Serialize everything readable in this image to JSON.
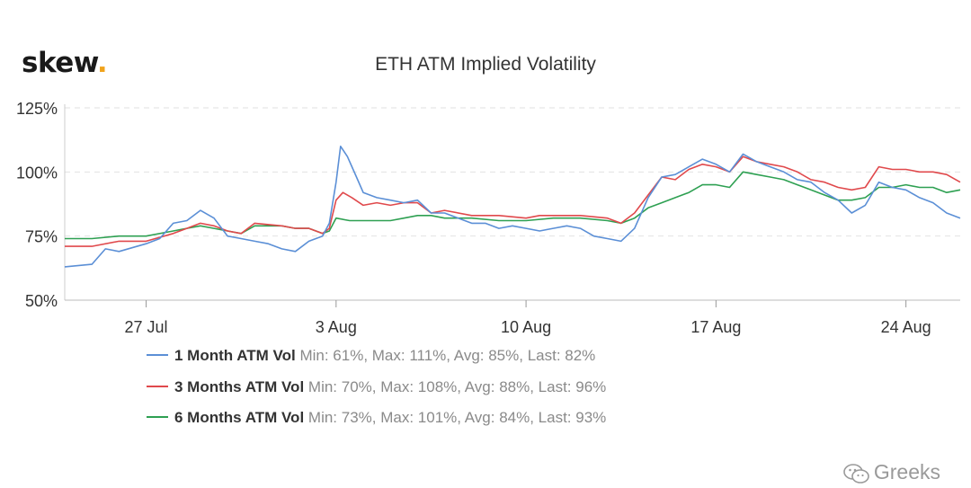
{
  "header": {
    "logo_text": "skew",
    "logo_dot": ".",
    "logo_dot_color": "#f0a31c"
  },
  "watermark": {
    "text": "Greeks",
    "icon": "wechat-icon"
  },
  "chart_data": {
    "type": "line",
    "title": "ETH ATM Implied Volatility",
    "xlabel": "",
    "ylabel": "",
    "x_axis": {
      "type": "date",
      "range": [
        "2020-07-24",
        "2020-08-26"
      ],
      "ticks": [
        {
          "date": "2020-07-27",
          "label": "27 Jul"
        },
        {
          "date": "2020-08-03",
          "label": "3 Aug"
        },
        {
          "date": "2020-08-10",
          "label": "10 Aug"
        },
        {
          "date": "2020-08-17",
          "label": "17 Aug"
        },
        {
          "date": "2020-08-24",
          "label": "24 Aug"
        }
      ]
    },
    "y_axis": {
      "range": [
        50,
        125
      ],
      "ticks": [
        {
          "value": 50,
          "label": "50%"
        },
        {
          "value": 75,
          "label": "75%"
        },
        {
          "value": 100,
          "label": "100%"
        },
        {
          "value": 125,
          "label": "125%"
        }
      ],
      "gridlines": true
    },
    "legend_position": "bottom",
    "series": [
      {
        "name": "1 Month ATM Vol",
        "stats": "Min: 61%, Max: 111%, Avg: 85%, Last: 82%",
        "color": "#5b8fd6",
        "points": [
          [
            "2020-07-24",
            63
          ],
          [
            "2020-07-25",
            64
          ],
          [
            "2020-07-25T12:00",
            70
          ],
          [
            "2020-07-26",
            69
          ],
          [
            "2020-07-27",
            72
          ],
          [
            "2020-07-27T12:00",
            74
          ],
          [
            "2020-07-28",
            80
          ],
          [
            "2020-07-28T12:00",
            81
          ],
          [
            "2020-07-29",
            85
          ],
          [
            "2020-07-29T12:00",
            82
          ],
          [
            "2020-07-30",
            75
          ],
          [
            "2020-07-30T12:00",
            74
          ],
          [
            "2020-07-31",
            73
          ],
          [
            "2020-07-31T12:00",
            72
          ],
          [
            "2020-08-01",
            70
          ],
          [
            "2020-08-01T12:00",
            69
          ],
          [
            "2020-08-02",
            73
          ],
          [
            "2020-08-02T12:00",
            75
          ],
          [
            "2020-08-02T18:00",
            80
          ],
          [
            "2020-08-03",
            96
          ],
          [
            "2020-08-03T04:00",
            110
          ],
          [
            "2020-08-03T10:00",
            106
          ],
          [
            "2020-08-03T18:00",
            98
          ],
          [
            "2020-08-04",
            92
          ],
          [
            "2020-08-04T12:00",
            90
          ],
          [
            "2020-08-05",
            89
          ],
          [
            "2020-08-05T12:00",
            88
          ],
          [
            "2020-08-06",
            89
          ],
          [
            "2020-08-06T12:00",
            84
          ],
          [
            "2020-08-07",
            84
          ],
          [
            "2020-08-07T12:00",
            82
          ],
          [
            "2020-08-08",
            80
          ],
          [
            "2020-08-08T12:00",
            80
          ],
          [
            "2020-08-09",
            78
          ],
          [
            "2020-08-09T12:00",
            79
          ],
          [
            "2020-08-10",
            78
          ],
          [
            "2020-08-10T12:00",
            77
          ],
          [
            "2020-08-11",
            78
          ],
          [
            "2020-08-11T12:00",
            79
          ],
          [
            "2020-08-12",
            78
          ],
          [
            "2020-08-12T12:00",
            75
          ],
          [
            "2020-08-13",
            74
          ],
          [
            "2020-08-13T12:00",
            73
          ],
          [
            "2020-08-14",
            78
          ],
          [
            "2020-08-14T12:00",
            90
          ],
          [
            "2020-08-15",
            98
          ],
          [
            "2020-08-15T12:00",
            99
          ],
          [
            "2020-08-16",
            102
          ],
          [
            "2020-08-16T12:00",
            105
          ],
          [
            "2020-08-17",
            103
          ],
          [
            "2020-08-17T12:00",
            100
          ],
          [
            "2020-08-18",
            107
          ],
          [
            "2020-08-18T12:00",
            104
          ],
          [
            "2020-08-19",
            102
          ],
          [
            "2020-08-19T12:00",
            100
          ],
          [
            "2020-08-20",
            97
          ],
          [
            "2020-08-20T12:00",
            96
          ],
          [
            "2020-08-21",
            92
          ],
          [
            "2020-08-21T12:00",
            89
          ],
          [
            "2020-08-22",
            84
          ],
          [
            "2020-08-22T12:00",
            87
          ],
          [
            "2020-08-23",
            96
          ],
          [
            "2020-08-23T12:00",
            94
          ],
          [
            "2020-08-24",
            93
          ],
          [
            "2020-08-24T12:00",
            90
          ],
          [
            "2020-08-25",
            88
          ],
          [
            "2020-08-25T12:00",
            84
          ],
          [
            "2020-08-26",
            82
          ]
        ]
      },
      {
        "name": "3 Months ATM Vol",
        "stats": "Min: 70%, Max: 108%, Avg: 88%, Last: 96%",
        "color": "#e0494c",
        "points": [
          [
            "2020-07-24",
            71
          ],
          [
            "2020-07-25",
            71
          ],
          [
            "2020-07-26",
            73
          ],
          [
            "2020-07-27",
            73
          ],
          [
            "2020-07-28",
            76
          ],
          [
            "2020-07-28T12:00",
            78
          ],
          [
            "2020-07-29",
            80
          ],
          [
            "2020-07-29T12:00",
            79
          ],
          [
            "2020-07-30",
            77
          ],
          [
            "2020-07-30T12:00",
            76
          ],
          [
            "2020-07-31",
            80
          ],
          [
            "2020-08-01",
            79
          ],
          [
            "2020-08-01T12:00",
            78
          ],
          [
            "2020-08-02",
            78
          ],
          [
            "2020-08-02T12:00",
            76
          ],
          [
            "2020-08-02T18:00",
            78
          ],
          [
            "2020-08-03",
            89
          ],
          [
            "2020-08-03T06:00",
            92
          ],
          [
            "2020-08-03T14:00",
            90
          ],
          [
            "2020-08-04",
            87
          ],
          [
            "2020-08-04T12:00",
            88
          ],
          [
            "2020-08-05",
            87
          ],
          [
            "2020-08-05T12:00",
            88
          ],
          [
            "2020-08-06",
            88
          ],
          [
            "2020-08-06T12:00",
            84
          ],
          [
            "2020-08-07",
            85
          ],
          [
            "2020-08-08",
            83
          ],
          [
            "2020-08-09",
            83
          ],
          [
            "2020-08-10",
            82
          ],
          [
            "2020-08-10T12:00",
            83
          ],
          [
            "2020-08-11",
            83
          ],
          [
            "2020-08-12",
            83
          ],
          [
            "2020-08-13",
            82
          ],
          [
            "2020-08-13T12:00",
            80
          ],
          [
            "2020-08-14",
            84
          ],
          [
            "2020-08-14T12:00",
            91
          ],
          [
            "2020-08-15",
            98
          ],
          [
            "2020-08-15T12:00",
            97
          ],
          [
            "2020-08-16",
            101
          ],
          [
            "2020-08-16T12:00",
            103
          ],
          [
            "2020-08-17",
            102
          ],
          [
            "2020-08-17T12:00",
            100
          ],
          [
            "2020-08-18",
            106
          ],
          [
            "2020-08-18T12:00",
            104
          ],
          [
            "2020-08-19",
            103
          ],
          [
            "2020-08-19T12:00",
            102
          ],
          [
            "2020-08-20",
            100
          ],
          [
            "2020-08-20T12:00",
            97
          ],
          [
            "2020-08-21",
            96
          ],
          [
            "2020-08-21T12:00",
            94
          ],
          [
            "2020-08-22",
            93
          ],
          [
            "2020-08-22T12:00",
            94
          ],
          [
            "2020-08-23",
            102
          ],
          [
            "2020-08-23T12:00",
            101
          ],
          [
            "2020-08-24",
            101
          ],
          [
            "2020-08-24T12:00",
            100
          ],
          [
            "2020-08-25",
            100
          ],
          [
            "2020-08-25T12:00",
            99
          ],
          [
            "2020-08-26",
            96
          ]
        ]
      },
      {
        "name": "6 Months ATM Vol",
        "stats": "Min: 73%, Max: 101%, Avg: 84%, Last: 93%",
        "color": "#2ea052",
        "points": [
          [
            "2020-07-24",
            74
          ],
          [
            "2020-07-25",
            74
          ],
          [
            "2020-07-26",
            75
          ],
          [
            "2020-07-27",
            75
          ],
          [
            "2020-07-28",
            77
          ],
          [
            "2020-07-28T12:00",
            78
          ],
          [
            "2020-07-29",
            79
          ],
          [
            "2020-07-29T12:00",
            78
          ],
          [
            "2020-07-30",
            77
          ],
          [
            "2020-07-30T12:00",
            76
          ],
          [
            "2020-07-31",
            79
          ],
          [
            "2020-08-01",
            79
          ],
          [
            "2020-08-01T12:00",
            78
          ],
          [
            "2020-08-02",
            78
          ],
          [
            "2020-08-02T12:00",
            76
          ],
          [
            "2020-08-02T18:00",
            77
          ],
          [
            "2020-08-03",
            82
          ],
          [
            "2020-08-03T12:00",
            81
          ],
          [
            "2020-08-04",
            81
          ],
          [
            "2020-08-05",
            81
          ],
          [
            "2020-08-05T12:00",
            82
          ],
          [
            "2020-08-06",
            83
          ],
          [
            "2020-08-06T12:00",
            83
          ],
          [
            "2020-08-07",
            82
          ],
          [
            "2020-08-08",
            82
          ],
          [
            "2020-08-09",
            81
          ],
          [
            "2020-08-10",
            81
          ],
          [
            "2020-08-11",
            82
          ],
          [
            "2020-08-12",
            82
          ],
          [
            "2020-08-13",
            81
          ],
          [
            "2020-08-13T12:00",
            80
          ],
          [
            "2020-08-14",
            82
          ],
          [
            "2020-08-14T12:00",
            86
          ],
          [
            "2020-08-15",
            88
          ],
          [
            "2020-08-15T12:00",
            90
          ],
          [
            "2020-08-16",
            92
          ],
          [
            "2020-08-16T12:00",
            95
          ],
          [
            "2020-08-17",
            95
          ],
          [
            "2020-08-17T12:00",
            94
          ],
          [
            "2020-08-18",
            100
          ],
          [
            "2020-08-18T12:00",
            99
          ],
          [
            "2020-08-19",
            98
          ],
          [
            "2020-08-19T12:00",
            97
          ],
          [
            "2020-08-20",
            95
          ],
          [
            "2020-08-20T12:00",
            93
          ],
          [
            "2020-08-21",
            91
          ],
          [
            "2020-08-21T12:00",
            89
          ],
          [
            "2020-08-22",
            89
          ],
          [
            "2020-08-22T12:00",
            90
          ],
          [
            "2020-08-23",
            94
          ],
          [
            "2020-08-23T12:00",
            94
          ],
          [
            "2020-08-24",
            95
          ],
          [
            "2020-08-24T12:00",
            94
          ],
          [
            "2020-08-25",
            94
          ],
          [
            "2020-08-25T12:00",
            92
          ],
          [
            "2020-08-26",
            93
          ]
        ]
      }
    ]
  }
}
